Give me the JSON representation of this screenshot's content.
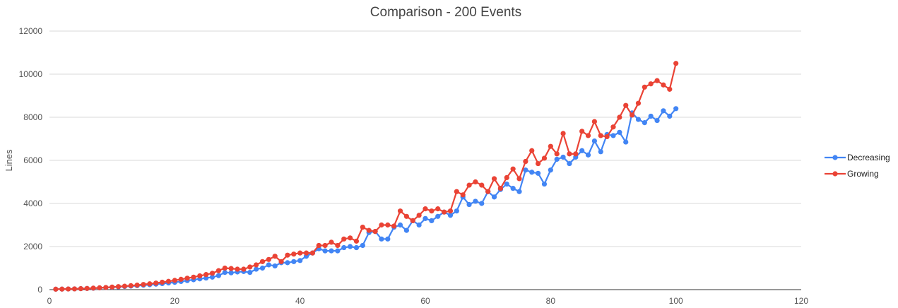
{
  "chart_data": {
    "type": "line",
    "title": "Comparison - 200 Events",
    "xlabel": "",
    "ylabel": "Lines",
    "xlim": [
      0,
      120
    ],
    "ylim": [
      0,
      12000
    ],
    "x_ticks": [
      "0",
      "20",
      "40",
      "60",
      "80",
      "100",
      "120"
    ],
    "y_ticks": [
      "0",
      "2000",
      "4000",
      "6000",
      "8000",
      "10000",
      "12000"
    ],
    "grid": true,
    "legend_position": "right",
    "x": [
      1,
      2,
      3,
      4,
      5,
      6,
      7,
      8,
      9,
      10,
      11,
      12,
      13,
      14,
      15,
      16,
      17,
      18,
      19,
      20,
      21,
      22,
      23,
      24,
      25,
      26,
      27,
      28,
      29,
      30,
      31,
      32,
      33,
      34,
      35,
      36,
      37,
      38,
      39,
      40,
      41,
      42,
      43,
      44,
      45,
      46,
      47,
      48,
      49,
      50,
      51,
      52,
      53,
      54,
      55,
      56,
      57,
      58,
      59,
      60,
      61,
      62,
      63,
      64,
      65,
      66,
      67,
      68,
      69,
      70,
      71,
      72,
      73,
      74,
      75,
      76,
      77,
      78,
      79,
      80,
      81,
      82,
      83,
      84,
      85,
      86,
      87,
      88,
      89,
      90,
      91,
      92,
      93,
      94,
      95,
      96,
      97,
      98,
      99,
      100
    ],
    "series": [
      {
        "name": "Decreasing",
        "color": "#4285f4",
        "values": [
          20,
          25,
          30,
          35,
          45,
          55,
          65,
          80,
          95,
          110,
          125,
          145,
          165,
          185,
          205,
          230,
          255,
          280,
          310,
          340,
          380,
          420,
          460,
          500,
          540,
          580,
          650,
          800,
          780,
          820,
          840,
          800,
          950,
          1000,
          1150,
          1100,
          1250,
          1250,
          1300,
          1350,
          1550,
          1700,
          1900,
          1800,
          1800,
          1800,
          1950,
          2000,
          1950,
          2050,
          2650,
          2700,
          2350,
          2350,
          2900,
          3000,
          2750,
          3200,
          3000,
          3300,
          3200,
          3400,
          3600,
          3450,
          3650,
          4300,
          3950,
          4100,
          4000,
          4550,
          4300,
          4650,
          4900,
          4700,
          4550,
          5550,
          5450,
          5400,
          4900,
          5550,
          6050,
          6150,
          5850,
          6150,
          6450,
          6250,
          6900,
          6400,
          7200,
          7150,
          7300,
          6850,
          8200,
          7900,
          7750,
          8050,
          7850,
          8300,
          8050,
          8400
        ]
      },
      {
        "name": "Growing",
        "color": "#ea4335",
        "values": [
          20,
          25,
          30,
          35,
          45,
          55,
          70,
          85,
          100,
          120,
          140,
          160,
          185,
          210,
          240,
          270,
          305,
          345,
          385,
          430,
          480,
          530,
          580,
          640,
          700,
          760,
          880,
          1000,
          980,
          950,
          950,
          1050,
          1150,
          1300,
          1400,
          1550,
          1300,
          1600,
          1650,
          1700,
          1700,
          1700,
          2050,
          2050,
          2200,
          2050,
          2350,
          2400,
          2250,
          2900,
          2750,
          2700,
          3000,
          3000,
          2950,
          3650,
          3400,
          3200,
          3450,
          3750,
          3650,
          3750,
          3600,
          3650,
          4550,
          4400,
          4850,
          5000,
          4850,
          4550,
          5150,
          4700,
          5200,
          5600,
          5150,
          5950,
          6450,
          5850,
          6100,
          6650,
          6300,
          7250,
          6300,
          6300,
          7350,
          7150,
          7800,
          7150,
          7100,
          7550,
          8000,
          8550,
          8100,
          8650,
          9400,
          9550,
          9700,
          9500,
          9300,
          10500
        ]
      }
    ]
  }
}
